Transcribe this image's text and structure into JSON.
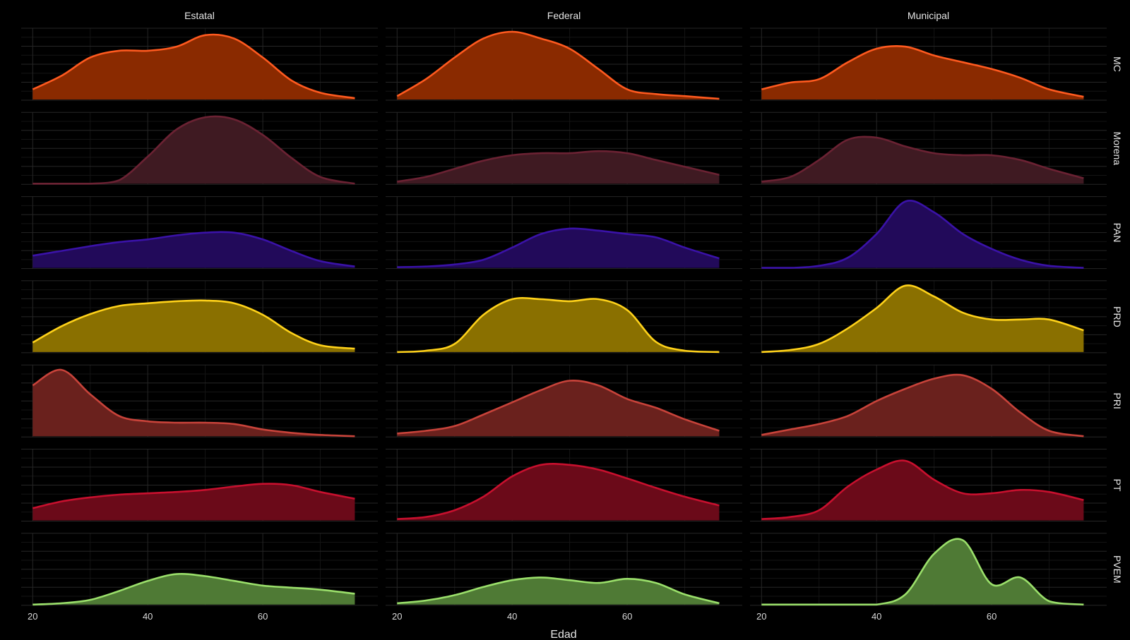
{
  "chart_data": {
    "type": "area",
    "xlabel": "Edad",
    "ylabel": "",
    "xlim": [
      18,
      80
    ],
    "x_ticks": [
      "20",
      "40",
      "60"
    ],
    "x_tick_values": [
      20,
      40,
      60
    ],
    "x_range": [
      20,
      76
    ],
    "columns": [
      "Estatal",
      "Federal",
      "Municipal"
    ],
    "rows": [
      {
        "name": "MC",
        "fill": "#8a2a00",
        "stroke": "#ff5a1f"
      },
      {
        "name": "Morena",
        "fill": "#3f1a22",
        "stroke": "#6b2233"
      },
      {
        "name": "PAN",
        "fill": "#220a5a",
        "stroke": "#3a12a8"
      },
      {
        "name": "PRD",
        "fill": "#8a7000",
        "stroke": "#ffd21a"
      },
      {
        "name": "PRI",
        "fill": "#6a211d",
        "stroke": "#c8433a"
      },
      {
        "name": "PT",
        "fill": "#6b0a19",
        "stroke": "#c8102e"
      },
      {
        "name": "PVEM",
        "fill": "#4f7a35",
        "stroke": "#9be06b"
      }
    ],
    "x": [
      20,
      25,
      30,
      35,
      40,
      45,
      50,
      55,
      60,
      65,
      70,
      76
    ],
    "series": [
      [
        {
          "name": "Estatal",
          "values": [
            0.15,
            0.35,
            0.62,
            0.72,
            0.72,
            0.78,
            0.95,
            0.9,
            0.62,
            0.28,
            0.1,
            0.02
          ]
        },
        {
          "name": "Federal",
          "values": [
            0.05,
            0.3,
            0.62,
            0.9,
            1.0,
            0.9,
            0.75,
            0.45,
            0.15,
            0.08,
            0.05,
            0.01
          ]
        },
        {
          "name": "Municipal",
          "values": [
            0.15,
            0.25,
            0.3,
            0.55,
            0.75,
            0.78,
            0.65,
            0.55,
            0.45,
            0.32,
            0.15,
            0.04
          ]
        }
      ],
      [
        {
          "name": "Estatal",
          "values": [
            0.0,
            0.0,
            0.0,
            0.05,
            0.4,
            0.8,
            0.98,
            0.95,
            0.72,
            0.38,
            0.1,
            0.0
          ]
        },
        {
          "name": "Federal",
          "values": [
            0.03,
            0.1,
            0.22,
            0.34,
            0.42,
            0.45,
            0.45,
            0.48,
            0.45,
            0.35,
            0.25,
            0.13
          ]
        },
        {
          "name": "Municipal",
          "values": [
            0.03,
            0.1,
            0.35,
            0.65,
            0.68,
            0.55,
            0.45,
            0.42,
            0.42,
            0.35,
            0.22,
            0.08
          ]
        }
      ],
      [
        {
          "name": "Estatal",
          "values": [
            0.18,
            0.25,
            0.32,
            0.38,
            0.42,
            0.48,
            0.52,
            0.52,
            0.42,
            0.25,
            0.1,
            0.02
          ]
        },
        {
          "name": "Federal",
          "values": [
            0.01,
            0.02,
            0.05,
            0.12,
            0.3,
            0.5,
            0.58,
            0.55,
            0.5,
            0.45,
            0.3,
            0.14
          ]
        },
        {
          "name": "Municipal",
          "values": [
            0.0,
            0.0,
            0.03,
            0.15,
            0.5,
            0.98,
            0.82,
            0.5,
            0.28,
            0.12,
            0.03,
            0.0
          ]
        }
      ],
      [
        {
          "name": "Estatal",
          "values": [
            0.14,
            0.38,
            0.56,
            0.68,
            0.72,
            0.75,
            0.76,
            0.72,
            0.55,
            0.28,
            0.1,
            0.05
          ]
        },
        {
          "name": "Federal",
          "values": [
            0.0,
            0.02,
            0.12,
            0.55,
            0.78,
            0.78,
            0.75,
            0.78,
            0.62,
            0.15,
            0.02,
            0.0
          ]
        },
        {
          "name": "Municipal",
          "values": [
            0.0,
            0.03,
            0.12,
            0.35,
            0.65,
            0.98,
            0.82,
            0.58,
            0.48,
            0.48,
            0.48,
            0.32
          ]
        }
      ],
      [
        {
          "name": "Estatal",
          "values": [
            0.75,
            0.98,
            0.62,
            0.3,
            0.22,
            0.2,
            0.2,
            0.18,
            0.1,
            0.05,
            0.02,
            0.0
          ]
        },
        {
          "name": "Federal",
          "values": [
            0.04,
            0.08,
            0.15,
            0.32,
            0.5,
            0.68,
            0.82,
            0.75,
            0.55,
            0.42,
            0.25,
            0.08
          ]
        },
        {
          "name": "Municipal",
          "values": [
            0.02,
            0.1,
            0.18,
            0.3,
            0.52,
            0.7,
            0.85,
            0.9,
            0.7,
            0.35,
            0.08,
            0.0
          ]
        }
      ],
      [
        {
          "name": "Estatal",
          "values": [
            0.18,
            0.28,
            0.34,
            0.38,
            0.4,
            0.42,
            0.45,
            0.5,
            0.54,
            0.52,
            0.42,
            0.32
          ]
        },
        {
          "name": "Federal",
          "values": [
            0.02,
            0.05,
            0.15,
            0.35,
            0.65,
            0.82,
            0.82,
            0.75,
            0.62,
            0.48,
            0.35,
            0.22
          ]
        },
        {
          "name": "Municipal",
          "values": [
            0.02,
            0.05,
            0.15,
            0.5,
            0.75,
            0.88,
            0.6,
            0.4,
            0.4,
            0.45,
            0.42,
            0.3
          ]
        }
      ],
      [
        {
          "name": "Estatal",
          "values": [
            0.0,
            0.02,
            0.07,
            0.2,
            0.35,
            0.45,
            0.42,
            0.35,
            0.28,
            0.25,
            0.22,
            0.16
          ]
        },
        {
          "name": "Federal",
          "values": [
            0.02,
            0.06,
            0.14,
            0.26,
            0.36,
            0.4,
            0.36,
            0.32,
            0.38,
            0.32,
            0.15,
            0.02
          ]
        },
        {
          "name": "Municipal",
          "values": [
            0.0,
            0.0,
            0.0,
            0.0,
            0.0,
            0.15,
            0.75,
            0.95,
            0.3,
            0.4,
            0.05,
            0.0
          ]
        }
      ]
    ]
  }
}
